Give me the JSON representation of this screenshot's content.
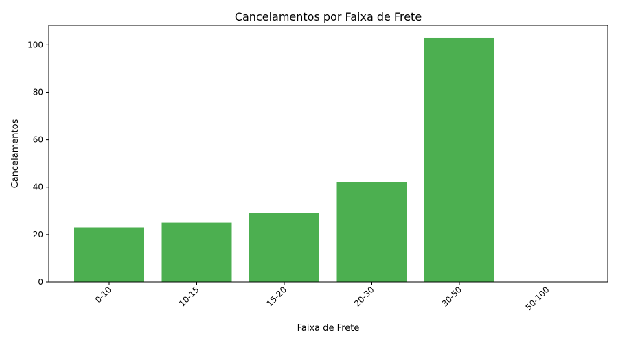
{
  "chart_data": {
    "type": "bar",
    "title": "Cancelamentos por Faixa de Frete",
    "xlabel": "Faixa de Frete",
    "ylabel": "Cancelamentos",
    "categories": [
      "0-10",
      "10-15",
      "15-20",
      "20-30",
      "30-50",
      "50-100"
    ],
    "values": [
      23,
      25,
      29,
      42,
      103,
      0
    ],
    "ylim": [
      0,
      108.2
    ],
    "yticks": [
      0,
      20,
      40,
      60,
      80,
      100
    ],
    "bar_color": "#4caf50",
    "grid": false,
    "x_tick_rotation_deg": 45
  }
}
